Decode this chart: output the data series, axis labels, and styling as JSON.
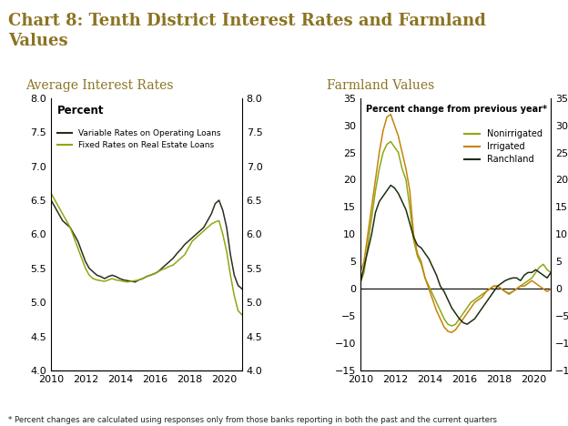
{
  "title": "Chart 8: Tenth District Interest Rates and Farmland\nValues",
  "title_color": "#8B7322",
  "title_fontsize": 13,
  "subtitle1": "Average Interest Rates",
  "subtitle2": "Farmland Values",
  "subtitle_color": "#8B7322",
  "subtitle_fontsize": 10,
  "footnote": "* Percent changes are calculated using responses only from those banks reporting in both the past and the current quarters",
  "left_ylabel": "Percent",
  "left_ylabel2": "Percent change from previous year*",
  "left_ylim": [
    4.0,
    8.0
  ],
  "left_yticks": [
    4.0,
    4.5,
    5.0,
    5.5,
    6.0,
    6.5,
    7.0,
    7.5,
    8.0
  ],
  "right_ylim": [
    -15,
    35
  ],
  "right_yticks": [
    -15,
    -10,
    -5,
    0,
    5,
    10,
    15,
    20,
    25,
    30,
    35
  ],
  "xticks": [
    2010,
    2012,
    2014,
    2016,
    2018,
    2020
  ],
  "line_color_variable": "#2d2d1e",
  "line_color_fixed": "#8aaa10",
  "line_color_nonirrigated": "#8aaa10",
  "line_color_irrigated": "#c8820a",
  "line_color_ranchland": "#1e2e10",
  "background_color": "#ffffff",
  "variable_rates": [
    6.5,
    6.4,
    6.3,
    6.2,
    6.15,
    6.1,
    6.0,
    5.9,
    5.75,
    5.6,
    5.5,
    5.45,
    5.4,
    5.38,
    5.35,
    5.38,
    5.4,
    5.38,
    5.35,
    5.33,
    5.32,
    5.31,
    5.3,
    5.33,
    5.35,
    5.38,
    5.4,
    5.42,
    5.45,
    5.5,
    5.55,
    5.6,
    5.65,
    5.72,
    5.78,
    5.85,
    5.9,
    5.95,
    6.0,
    6.05,
    6.1,
    6.2,
    6.3,
    6.45,
    6.5,
    6.35,
    6.1,
    5.7,
    5.4,
    5.25,
    5.2
  ],
  "fixed_rates": [
    6.6,
    6.5,
    6.4,
    6.3,
    6.2,
    6.1,
    5.95,
    5.8,
    5.65,
    5.5,
    5.4,
    5.35,
    5.33,
    5.32,
    5.31,
    5.33,
    5.35,
    5.33,
    5.32,
    5.31,
    5.3,
    5.31,
    5.32,
    5.33,
    5.35,
    5.38,
    5.4,
    5.42,
    5.45,
    5.48,
    5.5,
    5.53,
    5.55,
    5.6,
    5.65,
    5.7,
    5.8,
    5.9,
    5.95,
    6.0,
    6.05,
    6.1,
    6.15,
    6.18,
    6.2,
    6.0,
    5.75,
    5.4,
    5.1,
    4.88,
    4.82
  ],
  "nonirrigated": [
    1.0,
    3.0,
    8.0,
    13.0,
    18.0,
    22.0,
    25.0,
    26.5,
    27.0,
    26.0,
    25.0,
    22.0,
    20.0,
    15.0,
    9.0,
    6.0,
    4.5,
    2.0,
    0.5,
    -1.0,
    -2.5,
    -4.0,
    -5.5,
    -6.5,
    -6.8,
    -6.5,
    -5.5,
    -4.5,
    -3.5,
    -2.5,
    -2.0,
    -1.5,
    -1.0,
    -0.5,
    0.0,
    0.5,
    0.5,
    0.0,
    -0.5,
    -1.0,
    -0.5,
    0.0,
    0.5,
    1.0,
    1.5,
    2.0,
    3.0,
    4.0,
    4.5,
    3.5,
    3.0
  ],
  "irrigated": [
    3.0,
    5.0,
    10.0,
    15.0,
    20.0,
    25.0,
    29.0,
    31.5,
    32.0,
    30.0,
    28.0,
    25.0,
    22.0,
    18.0,
    10.0,
    6.5,
    5.0,
    2.0,
    0.0,
    -2.0,
    -4.0,
    -5.5,
    -7.0,
    -7.8,
    -8.0,
    -7.5,
    -6.5,
    -5.5,
    -4.5,
    -3.5,
    -2.5,
    -2.0,
    -1.5,
    -0.5,
    0.0,
    0.5,
    0.5,
    0.0,
    -0.5,
    -0.8,
    -0.5,
    0.0,
    0.5,
    0.5,
    1.0,
    1.5,
    1.0,
    0.5,
    0.0,
    -0.5,
    0.0
  ],
  "ranchland": [
    1.0,
    4.0,
    7.0,
    10.0,
    14.0,
    16.0,
    17.0,
    18.0,
    19.0,
    18.5,
    17.5,
    16.0,
    14.5,
    12.0,
    9.5,
    8.0,
    7.5,
    6.5,
    5.5,
    4.0,
    2.5,
    0.5,
    -0.5,
    -2.0,
    -3.5,
    -4.5,
    -5.5,
    -6.2,
    -6.5,
    -6.0,
    -5.5,
    -4.5,
    -3.5,
    -2.5,
    -1.5,
    -0.5,
    0.5,
    1.0,
    1.5,
    1.8,
    2.0,
    2.0,
    1.5,
    2.5,
    3.0,
    3.0,
    3.5,
    3.0,
    2.5,
    2.0,
    3.0
  ]
}
